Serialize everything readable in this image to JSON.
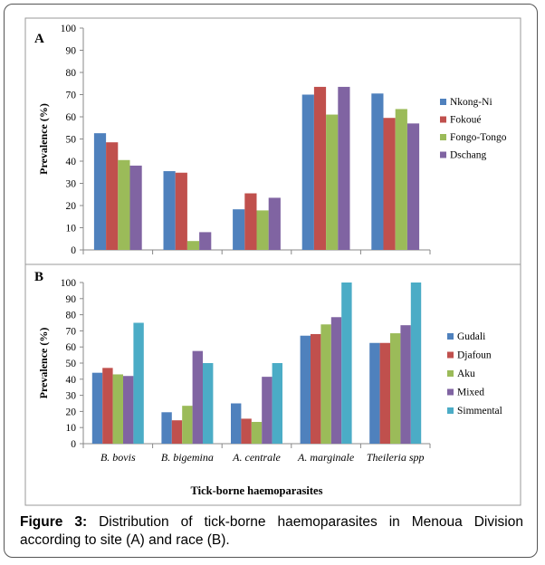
{
  "charts_shared": {
    "ylabel": "Prevalence (%)",
    "xlabel": "Tick-borne haemoparasites"
  },
  "caption": {
    "label": "Figure 3:",
    "text": "Distribution of tick-borne haemoparasites in Menoua Division according to site (A) and race (B)."
  },
  "chart_data": [
    {
      "type": "bar",
      "panel": "A",
      "categories": [
        "B. bovis",
        "B. bigemina",
        "A. centrale",
        "A. marginale",
        "Theileria spp"
      ],
      "ylabel": "Prevalence (%)",
      "ylim": [
        0,
        100
      ],
      "yticks": [
        0,
        10,
        20,
        30,
        40,
        50,
        60,
        70,
        80,
        90,
        100
      ],
      "legend": "right",
      "series": [
        {
          "name": "Nkong-Ni",
          "color": "#4F81BD",
          "values": [
            52.6,
            35.5,
            18.3,
            70.0,
            70.5
          ]
        },
        {
          "name": "Fokoué",
          "color": "#C0504D",
          "values": [
            48.5,
            34.8,
            25.5,
            73.5,
            59.5
          ]
        },
        {
          "name": "Fongo-Tongo",
          "color": "#9BBB59",
          "values": [
            40.5,
            4.0,
            17.8,
            61.0,
            63.5
          ]
        },
        {
          "name": "Dschang",
          "color": "#8064A2",
          "values": [
            38.0,
            8.0,
            23.5,
            73.5,
            57.0
          ]
        }
      ]
    },
    {
      "type": "bar",
      "panel": "B",
      "categories": [
        "B. bovis",
        "B. bigemina",
        "A. centrale",
        "A. marginale",
        "Theileria spp"
      ],
      "xlabel": "Tick-borne haemoparasites",
      "ylabel": "Prevalence (%)",
      "ylim": [
        0,
        100
      ],
      "yticks": [
        0,
        10,
        20,
        30,
        40,
        50,
        60,
        70,
        80,
        90,
        100
      ],
      "legend": "right",
      "series": [
        {
          "name": "Gudali",
          "color": "#4F81BD",
          "values": [
            44.0,
            19.5,
            25.0,
            67.0,
            62.5
          ]
        },
        {
          "name": "Djafoun",
          "color": "#C0504D",
          "values": [
            47.0,
            14.5,
            15.5,
            68.0,
            62.5
          ]
        },
        {
          "name": "Aku",
          "color": "#9BBB59",
          "values": [
            43.0,
            23.5,
            13.5,
            74.0,
            68.5
          ]
        },
        {
          "name": "Mixed",
          "color": "#8064A2",
          "values": [
            42.0,
            57.5,
            41.5,
            78.5,
            73.5
          ]
        },
        {
          "name": "Simmental",
          "color": "#4BACC6",
          "values": [
            75.0,
            50.0,
            50.0,
            100.0,
            100.0
          ]
        }
      ]
    }
  ]
}
